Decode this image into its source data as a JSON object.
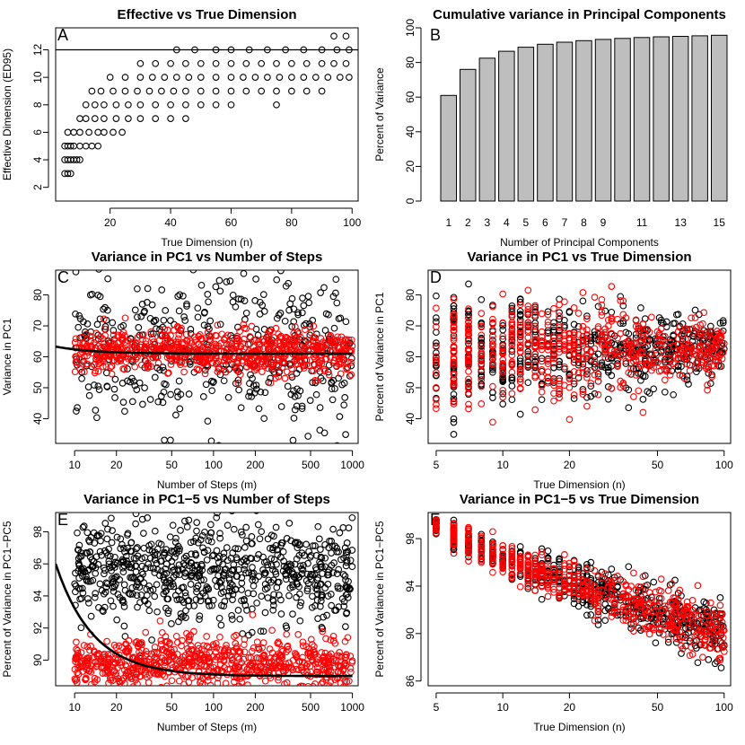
{
  "figure": {
    "panels": [
      {
        "letter": "A",
        "title": "Effective vs True Dimension",
        "xlabel": "True Dimension (n)",
        "ylabel": "Effective Dimension (ED95)"
      },
      {
        "letter": "B",
        "title": "Cumulative variance in Principal Components",
        "xlabel": "Number of Principal Components",
        "ylabel": "Percent of Variance"
      },
      {
        "letter": "C",
        "title": "Variance in PC1 vs Number of Steps",
        "xlabel": "Number of Steps (m)",
        "ylabel": "Variance in PC1"
      },
      {
        "letter": "D",
        "title": "Variance in PC1 vs True Dimension",
        "xlabel": "True Dimension (n)",
        "ylabel": "Percent of Variance in PC1"
      },
      {
        "letter": "E",
        "title": "Variance in PC1−5 vs Number of Steps",
        "xlabel": "Number of Steps (m)",
        "ylabel": "Percent of Variance in PC1−PC5"
      },
      {
        "letter": "F",
        "title": "Variance in PC1−5 vs True Dimension",
        "xlabel": "True Dimension (n)",
        "ylabel": "Percent of Variance in PC1−PC5"
      }
    ]
  },
  "chart_data": [
    {
      "type": "scatter",
      "panel": "A",
      "title": "Effective vs True Dimension",
      "xlabel": "True Dimension (n)",
      "ylabel": "Effective Dimension (ED95)",
      "xlim": [
        2,
        102
      ],
      "ylim": [
        1,
        13.6
      ],
      "x_ticks": [
        20,
        40,
        60,
        80,
        100
      ],
      "y_ticks": [
        2,
        4,
        6,
        8,
        10,
        12
      ],
      "hline": 12,
      "series": [
        {
          "color": "#000000",
          "points": [
            [
              5,
              3
            ],
            [
              6,
              3
            ],
            [
              7,
              3
            ],
            [
              5,
              4
            ],
            [
              6,
              4
            ],
            [
              7,
              4
            ],
            [
              8,
              4
            ],
            [
              9,
              4
            ],
            [
              10,
              4
            ],
            [
              5,
              5
            ],
            [
              6,
              5
            ],
            [
              7,
              5
            ],
            [
              8,
              5
            ],
            [
              10,
              5
            ],
            [
              12,
              5
            ],
            [
              14,
              5
            ],
            [
              16,
              5
            ],
            [
              6,
              6
            ],
            [
              8,
              6
            ],
            [
              10,
              6
            ],
            [
              13,
              6
            ],
            [
              16,
              6
            ],
            [
              18,
              6
            ],
            [
              21,
              6
            ],
            [
              24,
              6
            ],
            [
              10,
              7
            ],
            [
              12,
              7
            ],
            [
              15,
              7
            ],
            [
              18,
              7
            ],
            [
              22,
              7
            ],
            [
              26,
              7
            ],
            [
              30,
              7
            ],
            [
              35,
              7
            ],
            [
              40,
              7
            ],
            [
              45,
              7
            ],
            [
              12,
              8
            ],
            [
              15,
              8
            ],
            [
              18,
              8
            ],
            [
              22,
              8
            ],
            [
              26,
              8
            ],
            [
              30,
              8
            ],
            [
              35,
              8
            ],
            [
              40,
              8
            ],
            [
              45,
              8
            ],
            [
              50,
              8
            ],
            [
              55,
              8
            ],
            [
              60,
              8
            ],
            [
              75,
              8
            ],
            [
              14,
              9
            ],
            [
              17,
              9
            ],
            [
              21,
              9
            ],
            [
              25,
              9
            ],
            [
              29,
              9
            ],
            [
              33,
              9
            ],
            [
              37,
              9
            ],
            [
              41,
              9
            ],
            [
              45,
              9
            ],
            [
              50,
              9
            ],
            [
              55,
              9
            ],
            [
              60,
              9
            ],
            [
              65,
              9
            ],
            [
              70,
              9
            ],
            [
              75,
              9
            ],
            [
              80,
              9
            ],
            [
              85,
              9
            ],
            [
              90,
              9
            ],
            [
              20,
              10
            ],
            [
              25,
              10
            ],
            [
              30,
              10
            ],
            [
              34,
              10
            ],
            [
              38,
              10
            ],
            [
              42,
              10
            ],
            [
              46,
              10
            ],
            [
              50,
              10
            ],
            [
              55,
              10
            ],
            [
              60,
              10
            ],
            [
              64,
              10
            ],
            [
              68,
              10
            ],
            [
              72,
              10
            ],
            [
              76,
              10
            ],
            [
              80,
              10
            ],
            [
              84,
              10
            ],
            [
              88,
              10
            ],
            [
              92,
              10
            ],
            [
              96,
              10
            ],
            [
              99,
              10
            ],
            [
              30,
              11
            ],
            [
              35,
              11
            ],
            [
              40,
              11
            ],
            [
              45,
              11
            ],
            [
              50,
              11
            ],
            [
              55,
              11
            ],
            [
              60,
              11
            ],
            [
              65,
              11
            ],
            [
              70,
              11
            ],
            [
              75,
              11
            ],
            [
              80,
              11
            ],
            [
              85,
              11
            ],
            [
              90,
              11
            ],
            [
              94,
              11
            ],
            [
              98,
              11
            ],
            [
              42,
              12
            ],
            [
              48,
              12
            ],
            [
              55,
              12
            ],
            [
              60,
              12
            ],
            [
              66,
              12
            ],
            [
              72,
              12
            ],
            [
              78,
              12
            ],
            [
              84,
              12
            ],
            [
              90,
              12
            ],
            [
              95,
              12
            ],
            [
              99,
              12
            ],
            [
              94,
              13
            ],
            [
              98,
              13
            ]
          ]
        }
      ]
    },
    {
      "type": "bar",
      "panel": "B",
      "title": "Cumulative variance in Principal Components",
      "xlabel": "Number of Principal Components",
      "ylabel": "Percent of Variance",
      "ylim": [
        0,
        100
      ],
      "y_ticks": [
        0,
        20,
        40,
        60,
        80,
        100
      ],
      "categories": [
        "1",
        "2",
        "3",
        "4",
        "5",
        "6",
        "7",
        "8",
        "9",
        "10",
        "11",
        "12",
        "13",
        "14",
        "15"
      ],
      "tick_labels": [
        "1",
        "2",
        "3",
        "4",
        "5",
        "6",
        "7",
        "8",
        "9",
        "",
        "11",
        "",
        "13",
        "",
        "15"
      ],
      "values": [
        61,
        76,
        82.5,
        86.5,
        88.8,
        90.5,
        91.7,
        92.6,
        93.3,
        93.9,
        94.4,
        94.8,
        95.1,
        95.4,
        95.7
      ]
    },
    {
      "type": "scatter",
      "panel": "C",
      "title": "Variance in PC1 vs Number of Steps",
      "xlabel": "Number of Steps (m)",
      "ylabel": "Variance in PC1",
      "xscale": "log",
      "xlim": [
        7.3,
        1100
      ],
      "ylim": [
        32,
        88
      ],
      "x_ticks": [
        10,
        20,
        50,
        100,
        200,
        500,
        1000
      ],
      "y_ticks": [
        40,
        50,
        60,
        70,
        80
      ],
      "clouds": [
        {
          "color": "#000000",
          "count": 430,
          "x_range": [
            10,
            1000
          ],
          "y_center": 62,
          "y_spread": 12
        },
        {
          "color": "#ff0000",
          "count": 750,
          "x_range": [
            10,
            1000
          ],
          "y_center": 61.5,
          "y_spread": 3.5
        }
      ],
      "fit_curve": {
        "color": "#000000",
        "y_at_start": 63.3,
        "y_plateau": 61.0
      }
    },
    {
      "type": "scatter",
      "panel": "D",
      "title": "Variance in PC1 vs True Dimension",
      "xlabel": "True Dimension (n)",
      "ylabel": "Percent of Variance in PC1",
      "xscale": "log",
      "xlim": [
        4.6,
        107
      ],
      "ylim": [
        32,
        88
      ],
      "x_ticks": [
        5,
        10,
        20,
        50,
        100
      ],
      "y_ticks": [
        40,
        50,
        60,
        70,
        80
      ],
      "clouds": [
        {
          "color": "#000000",
          "count": 600,
          "x_range": [
            5,
            100
          ],
          "y_center": 62,
          "y_spread": 9
        },
        {
          "color": "#ff0000",
          "count": 600,
          "x_range": [
            5,
            100
          ],
          "y_center": 62,
          "y_spread": 9
        }
      ]
    },
    {
      "type": "scatter",
      "panel": "E",
      "title": "Variance in PC1−5 vs Number of Steps",
      "xlabel": "Number of Steps (m)",
      "ylabel": "Percent of Variance in PC1−PC5",
      "xscale": "log",
      "xlim": [
        7.3,
        1100
      ],
      "ylim": [
        88.4,
        99.2
      ],
      "x_ticks": [
        10,
        20,
        50,
        100,
        200,
        500,
        1000
      ],
      "y_ticks": [
        90,
        92,
        94,
        96,
        98
      ],
      "clouds": [
        {
          "color": "#000000",
          "count": 750,
          "x_range": [
            10,
            1000
          ],
          "y_center": 95.5,
          "y_spread": 1.6
        },
        {
          "color": "#ff0000",
          "count": 750,
          "x_range": [
            10,
            1000
          ],
          "y_center": 89.8,
          "y_spread": 0.8
        }
      ],
      "fit_curve": {
        "color": "#000000",
        "y_at_start": 96.0,
        "y_plateau": 89.0
      }
    },
    {
      "type": "scatter",
      "panel": "F",
      "title": "Variance in PC1−5 vs True Dimension",
      "xlabel": "True Dimension (n)",
      "ylabel": "Percent of Variance in PC1−PC5",
      "xscale": "log",
      "xlim": [
        4.6,
        107
      ],
      "ylim": [
        85.6,
        100.2
      ],
      "x_ticks": [
        5,
        10,
        20,
        50,
        100
      ],
      "y_ticks": [
        86,
        90,
        94,
        98
      ],
      "clouds": [
        {
          "color": "#000000",
          "count": 600,
          "x_range": [
            5,
            100
          ],
          "trend": [
            99.2,
            90.0
          ],
          "y_spread": 1.3
        },
        {
          "color": "#ff0000",
          "count": 600,
          "x_range": [
            5,
            100
          ],
          "trend": [
            99.2,
            90.0
          ],
          "y_spread": 1.3
        }
      ]
    }
  ]
}
